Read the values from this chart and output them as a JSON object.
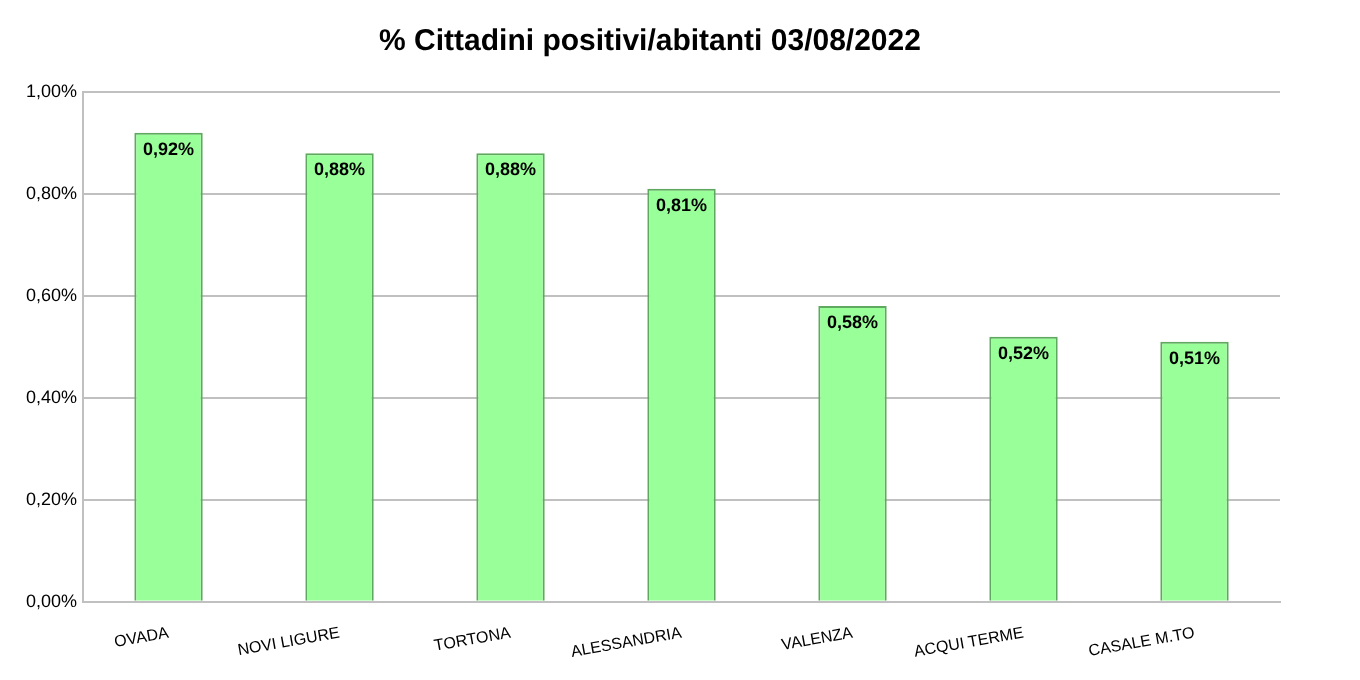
{
  "chart_data": {
    "type": "bar",
    "title": "% Cittadini positivi/abitanti 03/08/2022",
    "categories": [
      "OVADA",
      "NOVI LIGURE",
      "TORTONA",
      "ALESSANDRIA",
      "VALENZA",
      "ACQUI TERME",
      "CASALE M.TO"
    ],
    "values": [
      0.92,
      0.88,
      0.88,
      0.81,
      0.58,
      0.52,
      0.51
    ],
    "value_labels": [
      "0,92%",
      "0,88%",
      "0,88%",
      "0,81%",
      "0,58%",
      "0,52%",
      "0,51%"
    ],
    "color": "#99ff99",
    "ylim": [
      0,
      1
    ],
    "yticks": [
      {
        "value": 0,
        "label": "0,00%"
      },
      {
        "value": 0.2,
        "label": "0,20%"
      },
      {
        "value": 0.4,
        "label": "0,40%"
      },
      {
        "value": 0.6,
        "label": "0,60%"
      },
      {
        "value": 0.8,
        "label": "0,80%"
      },
      {
        "value": 1,
        "label": "1,00%"
      }
    ],
    "grid": "y",
    "legend": false
  }
}
